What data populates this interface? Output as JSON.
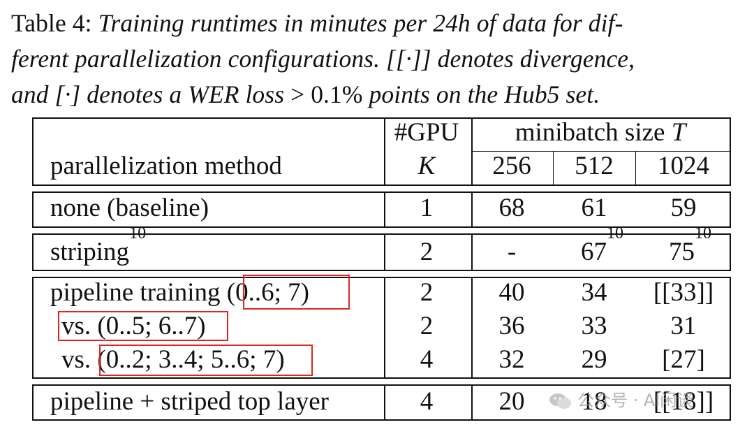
{
  "caption": {
    "label": "Table 4:",
    "part1": "Training runtimes in minutes per 24h of data for dif-",
    "part2": "ferent parallelization configurations. [[·]] denotes divergence,",
    "part3": "and [·] denotes a WER loss",
    "gt": ">",
    "value": "0.1%",
    "part4": "points on the Hub5 set."
  },
  "header": {
    "method": "parallelization method",
    "gpu_label": "#GPU",
    "gpu_var": "K",
    "minibatch_label": "minibatch size",
    "minibatch_var": "T",
    "sizes": [
      "256",
      "512",
      "1024"
    ]
  },
  "rows": {
    "baseline": {
      "method": "none (baseline)",
      "gpu": "1",
      "v256": "68",
      "v512": "61",
      "v1024": "59"
    },
    "striping": {
      "method": "striping",
      "method_sup": "10",
      "gpu": "2",
      "v256": "-",
      "v512": "67",
      "v512_sup": "10",
      "v1024": "75",
      "v1024_sup": "10"
    },
    "pipeline1": {
      "method": "pipeline training",
      "config": "(0..6; 7)",
      "gpu": "2",
      "v256": "40",
      "v512": "34",
      "v1024": "[[33]]"
    },
    "pipeline2": {
      "prefix": "vs.",
      "config": "(0..5; 6..7)",
      "gpu": "2",
      "v256": "36",
      "v512": "33",
      "v1024": "31"
    },
    "pipeline3": {
      "prefix": "vs.",
      "config": "(0..2; 3..4; 5..6; 7)",
      "gpu": "4",
      "v256": "32",
      "v512": "29",
      "v1024": "[27]"
    },
    "striped_top": {
      "method": "pipeline + striped top layer",
      "gpu": "4",
      "v256": "20",
      "v512": "18",
      "v1024": "[[18]]"
    }
  },
  "watermark": "公众号 · AI闲谈",
  "colors": {
    "highlight": "#e02424",
    "text": "#111111"
  }
}
